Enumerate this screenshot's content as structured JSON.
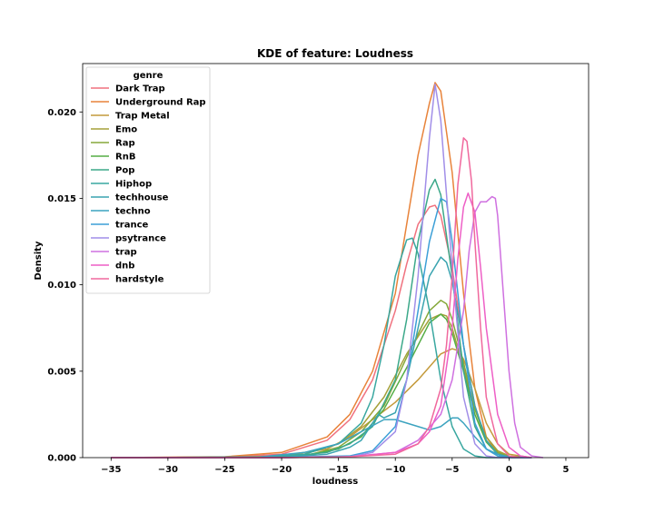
{
  "chart_data": {
    "type": "line",
    "title": "KDE of feature: Loudness",
    "xlabel": "loudness",
    "ylabel": "Density",
    "xlim": [
      -37.5,
      7
    ],
    "ylim": [
      0,
      0.0228
    ],
    "x_ticks": [
      -35,
      -30,
      -25,
      -20,
      -15,
      -10,
      -5,
      0,
      5
    ],
    "y_ticks": [
      0.0,
      0.005,
      0.01,
      0.015,
      0.02
    ],
    "y_tick_labels": [
      "0.000",
      "0.005",
      "0.010",
      "0.015",
      "0.020"
    ],
    "grid": false,
    "legend": {
      "title": "genre",
      "placement": "top-left"
    },
    "series": [
      {
        "name": "Dark Trap",
        "color": "#f0717e",
        "points": [
          [
            -35,
            0
          ],
          [
            -25,
            3e-05
          ],
          [
            -20,
            0.0002
          ],
          [
            -16,
            0.001
          ],
          [
            -14,
            0.0022
          ],
          [
            -12,
            0.0045
          ],
          [
            -10,
            0.0085
          ],
          [
            -9,
            0.0112
          ],
          [
            -8,
            0.0135
          ],
          [
            -7,
            0.0145
          ],
          [
            -6.5,
            0.0146
          ],
          [
            -6,
            0.014
          ],
          [
            -5,
            0.011
          ],
          [
            -4,
            0.0065
          ],
          [
            -3,
            0.003
          ],
          [
            -2,
            0.001
          ],
          [
            -1,
            0.0003
          ],
          [
            0,
            5e-05
          ],
          [
            2,
            0
          ]
        ]
      },
      {
        "name": "Underground Rap",
        "color": "#e8833a",
        "points": [
          [
            -35,
            0
          ],
          [
            -25,
            5e-05
          ],
          [
            -20,
            0.0003
          ],
          [
            -16,
            0.0012
          ],
          [
            -14,
            0.0025
          ],
          [
            -12,
            0.005
          ],
          [
            -10,
            0.0095
          ],
          [
            -9,
            0.0135
          ],
          [
            -8,
            0.0175
          ],
          [
            -7,
            0.0205
          ],
          [
            -6.5,
            0.0217
          ],
          [
            -6,
            0.0212
          ],
          [
            -5,
            0.0165
          ],
          [
            -4,
            0.0095
          ],
          [
            -3,
            0.004
          ],
          [
            -2,
            0.0012
          ],
          [
            -1,
            0.0003
          ],
          [
            0,
            5e-05
          ],
          [
            2,
            0
          ]
        ]
      },
      {
        "name": "Trap Metal",
        "color": "#c49a3b",
        "points": [
          [
            -35,
            0
          ],
          [
            -25,
            2e-05
          ],
          [
            -20,
            0.0001
          ],
          [
            -16,
            0.0005
          ],
          [
            -14,
            0.0012
          ],
          [
            -12,
            0.0022
          ],
          [
            -10,
            0.0032
          ],
          [
            -8,
            0.0045
          ],
          [
            -6,
            0.006
          ],
          [
            -5,
            0.0063
          ],
          [
            -4.5,
            0.0062
          ],
          [
            -4,
            0.0057
          ],
          [
            -3,
            0.004
          ],
          [
            -2,
            0.002
          ],
          [
            -1,
            0.0008
          ],
          [
            0,
            0.0002
          ],
          [
            2,
            0
          ]
        ]
      },
      {
        "name": "Emo",
        "color": "#a5a03a",
        "points": [
          [
            -35,
            0
          ],
          [
            -22,
            3e-05
          ],
          [
            -18,
            0.0002
          ],
          [
            -15,
            0.0008
          ],
          [
            -13,
            0.0018
          ],
          [
            -11,
            0.0035
          ],
          [
            -9,
            0.006
          ],
          [
            -7,
            0.008
          ],
          [
            -6,
            0.0083
          ],
          [
            -5.5,
            0.0082
          ],
          [
            -5,
            0.0075
          ],
          [
            -4,
            0.0052
          ],
          [
            -3,
            0.0028
          ],
          [
            -2,
            0.0012
          ],
          [
            -1,
            0.0004
          ],
          [
            0,
            0.0001
          ],
          [
            2,
            0
          ]
        ]
      },
      {
        "name": "Rap",
        "color": "#85a83a",
        "points": [
          [
            -35,
            0
          ],
          [
            -22,
            2e-05
          ],
          [
            -18,
            0.0001
          ],
          [
            -15,
            0.0006
          ],
          [
            -13,
            0.0015
          ],
          [
            -11,
            0.003
          ],
          [
            -9,
            0.0058
          ],
          [
            -7,
            0.0085
          ],
          [
            -6,
            0.0091
          ],
          [
            -5.5,
            0.0089
          ],
          [
            -5,
            0.008
          ],
          [
            -4,
            0.0055
          ],
          [
            -3,
            0.0028
          ],
          [
            -2,
            0.001
          ],
          [
            -1,
            0.0003
          ],
          [
            0,
            5e-05
          ],
          [
            2,
            0
          ]
        ]
      },
      {
        "name": "RnB",
        "color": "#55ae45",
        "points": [
          [
            -35,
            0
          ],
          [
            -22,
            2e-05
          ],
          [
            -18,
            0.0001
          ],
          [
            -15,
            0.0005
          ],
          [
            -13,
            0.0012
          ],
          [
            -11,
            0.0028
          ],
          [
            -9,
            0.0052
          ],
          [
            -7,
            0.0078
          ],
          [
            -6,
            0.0083
          ],
          [
            -5.5,
            0.008
          ],
          [
            -5,
            0.0072
          ],
          [
            -4,
            0.005
          ],
          [
            -3,
            0.0025
          ],
          [
            -2,
            0.0009
          ],
          [
            -1,
            0.0002
          ],
          [
            0,
            4e-05
          ],
          [
            2,
            0
          ]
        ]
      },
      {
        "name": "Pop",
        "color": "#3ba889",
        "points": [
          [
            -35,
            0
          ],
          [
            -20,
            3e-05
          ],
          [
            -16,
            0.0003
          ],
          [
            -14,
            0.0008
          ],
          [
            -12,
            0.0018
          ],
          [
            -10,
            0.0045
          ],
          [
            -9,
            0.008
          ],
          [
            -8,
            0.0125
          ],
          [
            -7,
            0.0155
          ],
          [
            -6.5,
            0.0161
          ],
          [
            -6,
            0.0152
          ],
          [
            -5,
            0.0105
          ],
          [
            -4,
            0.005
          ],
          [
            -3,
            0.0018
          ],
          [
            -2,
            0.0005
          ],
          [
            -1,
            0.0001
          ],
          [
            0,
            0
          ],
          [
            2,
            0
          ]
        ]
      },
      {
        "name": "Hiphop",
        "color": "#39a7a0",
        "points": [
          [
            -35,
            0
          ],
          [
            -22,
            3e-05
          ],
          [
            -18,
            0.0002
          ],
          [
            -15,
            0.0008
          ],
          [
            -13,
            0.002
          ],
          [
            -12,
            0.0035
          ],
          [
            -11,
            0.0065
          ],
          [
            -10,
            0.0105
          ],
          [
            -9,
            0.0126
          ],
          [
            -8.5,
            0.0127
          ],
          [
            -8,
            0.0118
          ],
          [
            -7,
            0.0085
          ],
          [
            -6,
            0.0045
          ],
          [
            -5,
            0.0018
          ],
          [
            -4,
            0.0005
          ],
          [
            -3,
            0.0001
          ],
          [
            -2,
            0
          ],
          [
            2,
            0
          ]
        ]
      },
      {
        "name": "techhouse",
        "color": "#3aa4b0",
        "points": [
          [
            -35,
            0
          ],
          [
            -20,
            2e-05
          ],
          [
            -16,
            0.0002
          ],
          [
            -14,
            0.0006
          ],
          [
            -13,
            0.001
          ],
          [
            -12,
            0.002
          ],
          [
            -11.5,
            0.0025
          ],
          [
            -11,
            0.0023
          ],
          [
            -10,
            0.0026
          ],
          [
            -9,
            0.0045
          ],
          [
            -8,
            0.0075
          ],
          [
            -7,
            0.0105
          ],
          [
            -6,
            0.0116
          ],
          [
            -5.5,
            0.0113
          ],
          [
            -5,
            0.0102
          ],
          [
            -4,
            0.0065
          ],
          [
            -3,
            0.003
          ],
          [
            -2,
            0.001
          ],
          [
            -1,
            0.0002
          ],
          [
            0,
            0
          ],
          [
            2,
            0
          ]
        ]
      },
      {
        "name": "techno",
        "color": "#3ca3bf",
        "points": [
          [
            -35,
            0
          ],
          [
            -22,
            3e-05
          ],
          [
            -18,
            0.0003
          ],
          [
            -15,
            0.0008
          ],
          [
            -13,
            0.0015
          ],
          [
            -11,
            0.0022
          ],
          [
            -10,
            0.0022
          ],
          [
            -8,
            0.0018
          ],
          [
            -7,
            0.0016
          ],
          [
            -6,
            0.0018
          ],
          [
            -5,
            0.0023
          ],
          [
            -4.5,
            0.0023
          ],
          [
            -4,
            0.002
          ],
          [
            -3,
            0.0012
          ],
          [
            -2,
            0.0005
          ],
          [
            -1,
            0.0002
          ],
          [
            0,
            5e-05
          ],
          [
            2,
            0
          ]
        ]
      },
      {
        "name": "trance",
        "color": "#3b9fd7",
        "points": [
          [
            -35,
            0
          ],
          [
            -20,
            2e-05
          ],
          [
            -14,
            0.0001
          ],
          [
            -12,
            0.0004
          ],
          [
            -10,
            0.0018
          ],
          [
            -9,
            0.0045
          ],
          [
            -8,
            0.0085
          ],
          [
            -7,
            0.0125
          ],
          [
            -6,
            0.015
          ],
          [
            -5.5,
            0.0148
          ],
          [
            -5,
            0.0125
          ],
          [
            -4,
            0.0065
          ],
          [
            -3,
            0.002
          ],
          [
            -2,
            0.0005
          ],
          [
            -1,
            0.0001
          ],
          [
            0,
            0
          ],
          [
            2,
            0
          ]
        ]
      },
      {
        "name": "psytrance",
        "color": "#a18ee8",
        "points": [
          [
            -35,
            0
          ],
          [
            -20,
            0
          ],
          [
            -14,
            5e-05
          ],
          [
            -12,
            0.0003
          ],
          [
            -10,
            0.0015
          ],
          [
            -9,
            0.0045
          ],
          [
            -8,
            0.0105
          ],
          [
            -7,
            0.0185
          ],
          [
            -6.5,
            0.0216
          ],
          [
            -6,
            0.0195
          ],
          [
            -5,
            0.011
          ],
          [
            -4,
            0.0035
          ],
          [
            -3,
            0.0008
          ],
          [
            -2,
            0.0001
          ],
          [
            -1,
            0
          ],
          [
            2,
            0
          ]
        ]
      },
      {
        "name": "trap",
        "color": "#cf70e0",
        "points": [
          [
            -35,
            0
          ],
          [
            -20,
            0
          ],
          [
            -14,
            5e-05
          ],
          [
            -10,
            0.0003
          ],
          [
            -8,
            0.001
          ],
          [
            -6,
            0.0025
          ],
          [
            -5,
            0.0045
          ],
          [
            -4,
            0.0085
          ],
          [
            -3.5,
            0.012
          ],
          [
            -3,
            0.0142
          ],
          [
            -2.5,
            0.0148
          ],
          [
            -2,
            0.0148
          ],
          [
            -1.5,
            0.0151
          ],
          [
            -1.2,
            0.015
          ],
          [
            -1,
            0.014
          ],
          [
            -0.5,
            0.0095
          ],
          [
            0,
            0.005
          ],
          [
            0.5,
            0.002
          ],
          [
            1,
            0.0006
          ],
          [
            2,
            0.0001
          ],
          [
            3,
            0
          ]
        ]
      },
      {
        "name": "dnb",
        "color": "#ee5fc6",
        "points": [
          [
            -35,
            0
          ],
          [
            -20,
            0
          ],
          [
            -14,
            5e-05
          ],
          [
            -10,
            0.0003
          ],
          [
            -8,
            0.0008
          ],
          [
            -7,
            0.0015
          ],
          [
            -6,
            0.003
          ],
          [
            -5,
            0.0075
          ],
          [
            -4.5,
            0.0115
          ],
          [
            -4,
            0.0145
          ],
          [
            -3.6,
            0.0153
          ],
          [
            -3,
            0.0142
          ],
          [
            -2.5,
            0.011
          ],
          [
            -2,
            0.0075
          ],
          [
            -1,
            0.0025
          ],
          [
            0,
            0.0006
          ],
          [
            1,
            0.0001
          ],
          [
            2,
            0
          ]
        ]
      },
      {
        "name": "hardstyle",
        "color": "#f0689d",
        "points": [
          [
            -35,
            0
          ],
          [
            -20,
            0
          ],
          [
            -14,
            5e-05
          ],
          [
            -10,
            0.0002
          ],
          [
            -8,
            0.0008
          ],
          [
            -7,
            0.0018
          ],
          [
            -6,
            0.004
          ],
          [
            -5.5,
            0.0065
          ],
          [
            -5,
            0.0105
          ],
          [
            -4.5,
            0.0158
          ],
          [
            -4,
            0.0185
          ],
          [
            -3.7,
            0.0183
          ],
          [
            -3.3,
            0.016
          ],
          [
            -3,
            0.0125
          ],
          [
            -2.5,
            0.0075
          ],
          [
            -2,
            0.0035
          ],
          [
            -1,
            0.0008
          ],
          [
            0,
            0.0001
          ],
          [
            1,
            0
          ]
        ]
      }
    ]
  }
}
